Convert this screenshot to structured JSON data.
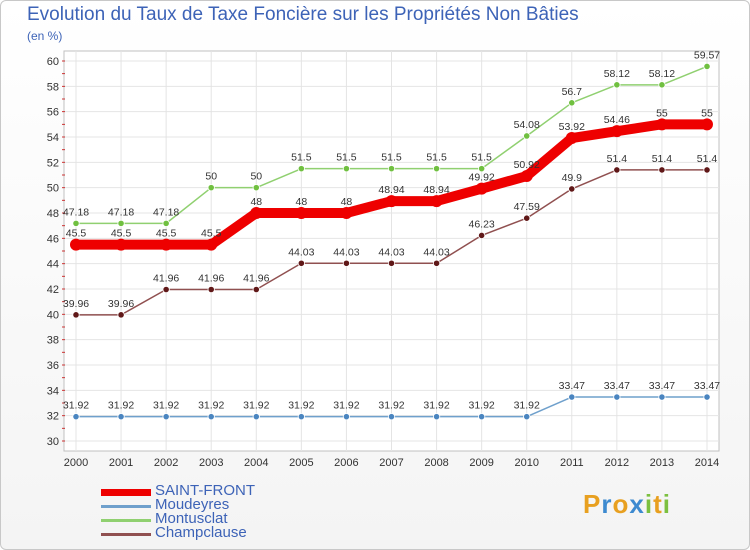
{
  "title": "Evolution du Taux de Taxe Foncière sur les Propriétés Non Bâties",
  "subtitle": "(en %)",
  "logo": {
    "letters": [
      "P",
      "r",
      "o",
      "x",
      "i",
      "t",
      "i"
    ],
    "colors": [
      "#e8a020",
      "#3d8ad0",
      "#e8a020",
      "#3d8ad0",
      "#7cc040",
      "#e8a020",
      "#7cc040"
    ]
  },
  "chart_data": {
    "type": "line",
    "title": "Evolution du Taux de Taxe Foncière sur les Propriétés Non Bâties",
    "ylabel": "(en %)",
    "x": [
      "2000",
      "2001",
      "2002",
      "2003",
      "2004",
      "2005",
      "2006",
      "2007",
      "2008",
      "2009",
      "2010",
      "2011",
      "2012",
      "2013",
      "2014"
    ],
    "ylim": [
      30,
      60
    ],
    "yticks": [
      "30",
      "32",
      "34",
      "36",
      "38",
      "40",
      "42",
      "44",
      "46",
      "48",
      "50",
      "52",
      "54",
      "56",
      "58",
      "60"
    ],
    "series": [
      {
        "name": "Montusclat",
        "color": "#90d070",
        "dot": "#70c040",
        "values": [
          47.18,
          47.18,
          47.18,
          50,
          50,
          51.5,
          51.5,
          51.5,
          51.5,
          51.5,
          54.08,
          56.7,
          58.12,
          58.12,
          59.57
        ],
        "labels": [
          "47.18",
          "47.18",
          "47.18",
          "50",
          "50",
          "51.5",
          "51.5",
          "51.5",
          "51.5",
          "51.5",
          "54.08",
          "56.7",
          "58.12",
          "58.12",
          "59.57"
        ]
      },
      {
        "name": "Champclause",
        "color": "#905050",
        "dot": "#601818",
        "values": [
          39.96,
          39.96,
          41.96,
          41.96,
          41.96,
          44.03,
          44.03,
          44.03,
          44.03,
          46.23,
          47.59,
          49.9,
          51.4,
          51.4,
          51.4
        ],
        "labels": [
          "39.96",
          "39.96",
          "41.96",
          "41.96",
          "41.96",
          "44.03",
          "44.03",
          "44.03",
          "44.03",
          "46.23",
          "47.59",
          "49.9",
          "51.4",
          "51.4",
          "51.4"
        ]
      },
      {
        "name": "Moudeyres",
        "color": "#6fa0cc",
        "dot": "#4a85c0",
        "values": [
          31.92,
          31.92,
          31.92,
          31.92,
          31.92,
          31.92,
          31.92,
          31.92,
          31.92,
          31.92,
          31.92,
          33.47,
          33.47,
          33.47,
          33.47
        ],
        "labels": [
          "31.92",
          "31.92",
          "31.92",
          "31.92",
          "31.92",
          "31.92",
          "31.92",
          "31.92",
          "31.92",
          "31.92",
          "31.92",
          "33.47",
          "33.47",
          "33.47",
          "33.47"
        ]
      },
      {
        "name": "SAINT-FRONT",
        "color": "#ee0000",
        "dot": "#ee0000",
        "values": [
          45.5,
          45.5,
          45.5,
          45.5,
          48,
          48,
          48,
          48.94,
          48.94,
          49.92,
          50.92,
          53.92,
          54.46,
          55,
          55
        ],
        "labels": [
          "45.5",
          "45.5",
          "45.5",
          "45.5",
          "48",
          "48",
          "48",
          "48.94",
          "48.94",
          "49.92",
          "50.92",
          "53.92",
          "54.46",
          "55",
          "55"
        ]
      }
    ],
    "legend": [
      "SAINT-FRONT",
      "Moudeyres",
      "Montusclat",
      "Champclause"
    ],
    "legend_colors": [
      "#ee0000",
      "#6fa0cc",
      "#90d070",
      "#905050"
    ]
  }
}
